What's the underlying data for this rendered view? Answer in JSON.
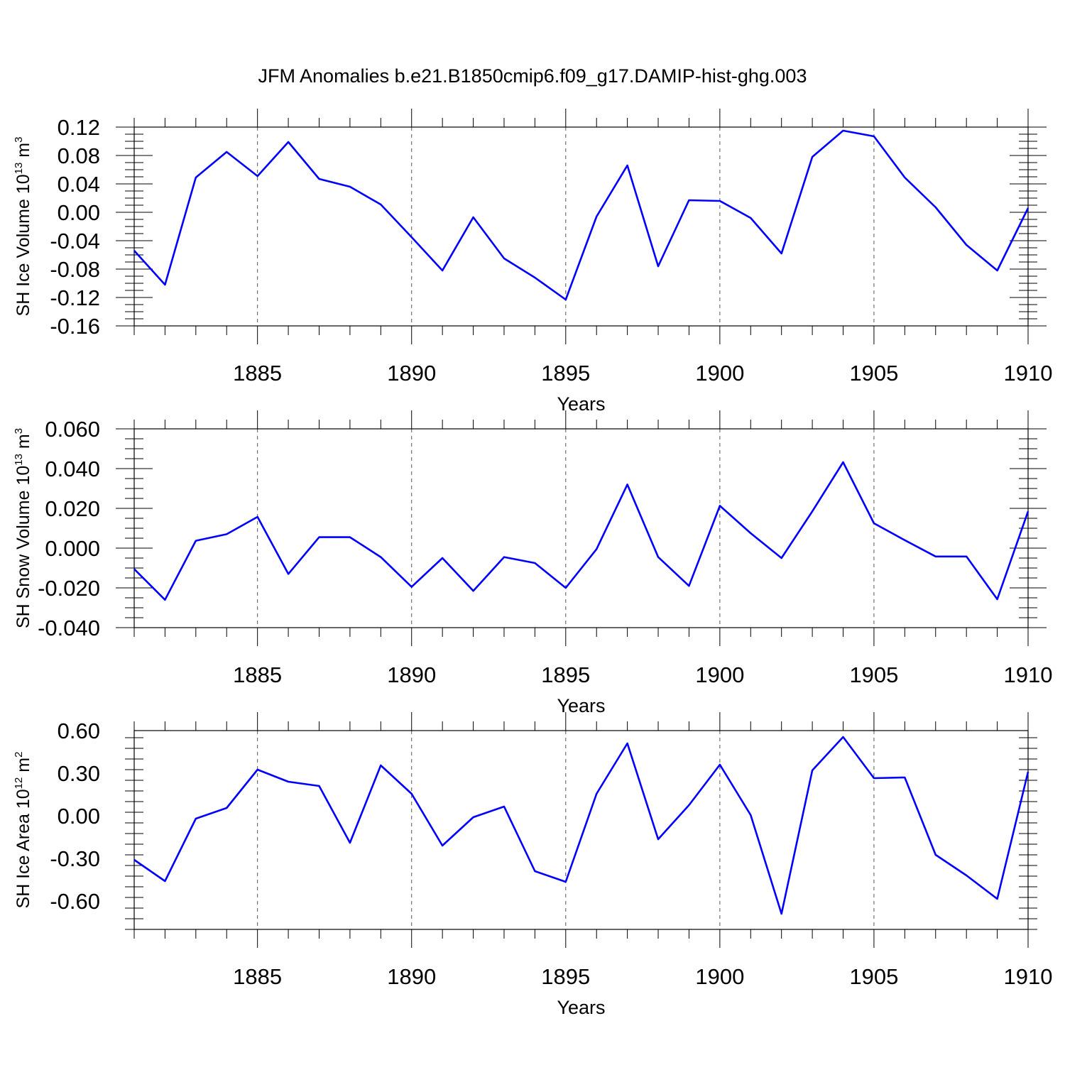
{
  "title": "JFM Anomalies b.e21.B1850cmip6.f09_g17.DAMIP-hist-ghg.003",
  "line_color": "#0000ff",
  "chart_data": [
    {
      "type": "line",
      "ylabel": {
        "main": "SH Ice Volume 10",
        "sup1": "13",
        "mid": " m",
        "sup2": "3"
      },
      "xlabel": "Years",
      "xlim": [
        1881,
        1910
      ],
      "x_ticks": [
        1885,
        1890,
        1895,
        1900,
        1905,
        1910
      ],
      "ylim": [
        -0.16,
        0.12
      ],
      "y_ticks": [
        -0.16,
        -0.12,
        -0.08,
        -0.04,
        0.0,
        0.04,
        0.08,
        0.12
      ],
      "y_tick_labels": [
        "-0.16",
        "-0.12",
        "-0.08",
        "-0.04",
        "0.00",
        "0.04",
        "0.08",
        "0.12"
      ],
      "x": [
        1881,
        1882,
        1883,
        1884,
        1885,
        1886,
        1887,
        1888,
        1889,
        1890,
        1891,
        1892,
        1893,
        1894,
        1895,
        1896,
        1897,
        1898,
        1899,
        1900,
        1901,
        1902,
        1903,
        1904,
        1905,
        1906,
        1907,
        1908,
        1909,
        1910
      ],
      "series": [
        {
          "values": [
            -0.054,
            -0.102,
            0.049,
            0.085,
            0.051,
            0.099,
            0.047,
            0.036,
            0.011,
            -0.035,
            -0.082,
            -0.007,
            -0.065,
            -0.092,
            -0.123,
            -0.006,
            0.066,
            -0.076,
            0.017,
            0.016,
            -0.008,
            -0.058,
            0.078,
            0.115,
            0.107,
            0.049,
            0.007,
            -0.046,
            -0.082,
            0.006
          ]
        }
      ],
      "grid": "vertical dashed lines at labeled years"
    },
    {
      "type": "line",
      "ylabel": {
        "main": "SH Snow Volume 10",
        "sup1": "13",
        "mid": " m",
        "sup2": "3"
      },
      "xlabel": "Years",
      "xlim": [
        1881,
        1910
      ],
      "x_ticks": [
        1885,
        1890,
        1895,
        1900,
        1905,
        1910
      ],
      "ylim": [
        -0.04,
        0.06
      ],
      "y_ticks": [
        -0.04,
        -0.02,
        0.0,
        0.02,
        0.04,
        0.06
      ],
      "y_tick_labels": [
        "-0.040",
        "-0.020",
        "0.000",
        "0.020",
        "0.040",
        "0.060"
      ],
      "x": [
        1881,
        1882,
        1883,
        1884,
        1885,
        1886,
        1887,
        1888,
        1889,
        1890,
        1891,
        1892,
        1893,
        1894,
        1895,
        1896,
        1897,
        1898,
        1899,
        1900,
        1901,
        1902,
        1903,
        1904,
        1905,
        1906,
        1907,
        1908,
        1909,
        1910
      ],
      "series": [
        {
          "values": [
            -0.0105,
            -0.026,
            0.0037,
            0.007,
            0.0157,
            -0.013,
            0.0055,
            0.0055,
            -0.0045,
            -0.0195,
            -0.005,
            -0.0215,
            -0.0045,
            -0.0075,
            -0.02,
            -0.0005,
            0.032,
            -0.0045,
            -0.019,
            0.0213,
            0.0075,
            -0.005,
            0.0185,
            0.0432,
            0.0125,
            0.004,
            -0.0042,
            -0.0042,
            -0.0257,
            0.0185
          ]
        }
      ],
      "grid": "vertical dashed lines at labeled years"
    },
    {
      "type": "line",
      "ylabel": {
        "main": "SH Ice Area 10",
        "sup1": "12",
        "mid": " m",
        "sup2": "2"
      },
      "xlabel": "Years",
      "xlim": [
        1881,
        1910
      ],
      "x_ticks": [
        1885,
        1890,
        1895,
        1900,
        1905,
        1910
      ],
      "ylim": [
        -0.8,
        0.6
      ],
      "y_ticks": [
        -0.6,
        -0.3,
        0.0,
        0.3,
        0.6
      ],
      "y_tick_labels": [
        "-0.60",
        "-0.30",
        "0.00",
        "0.30",
        "0.60"
      ],
      "x": [
        1881,
        1882,
        1883,
        1884,
        1885,
        1886,
        1887,
        1888,
        1889,
        1890,
        1891,
        1892,
        1893,
        1894,
        1895,
        1896,
        1897,
        1898,
        1899,
        1900,
        1901,
        1902,
        1903,
        1904,
        1905,
        1906,
        1907,
        1908,
        1909,
        1910
      ],
      "series": [
        {
          "values": [
            -0.31,
            -0.46,
            -0.02,
            0.055,
            0.325,
            0.24,
            0.21,
            -0.19,
            0.355,
            0.155,
            -0.21,
            -0.01,
            0.065,
            -0.39,
            -0.465,
            0.155,
            0.51,
            -0.165,
            0.075,
            0.36,
            0.005,
            -0.69,
            0.32,
            0.555,
            0.265,
            0.27,
            -0.275,
            -0.42,
            -0.585,
            0.31
          ]
        }
      ],
      "grid": "vertical dashed lines at labeled years"
    }
  ]
}
